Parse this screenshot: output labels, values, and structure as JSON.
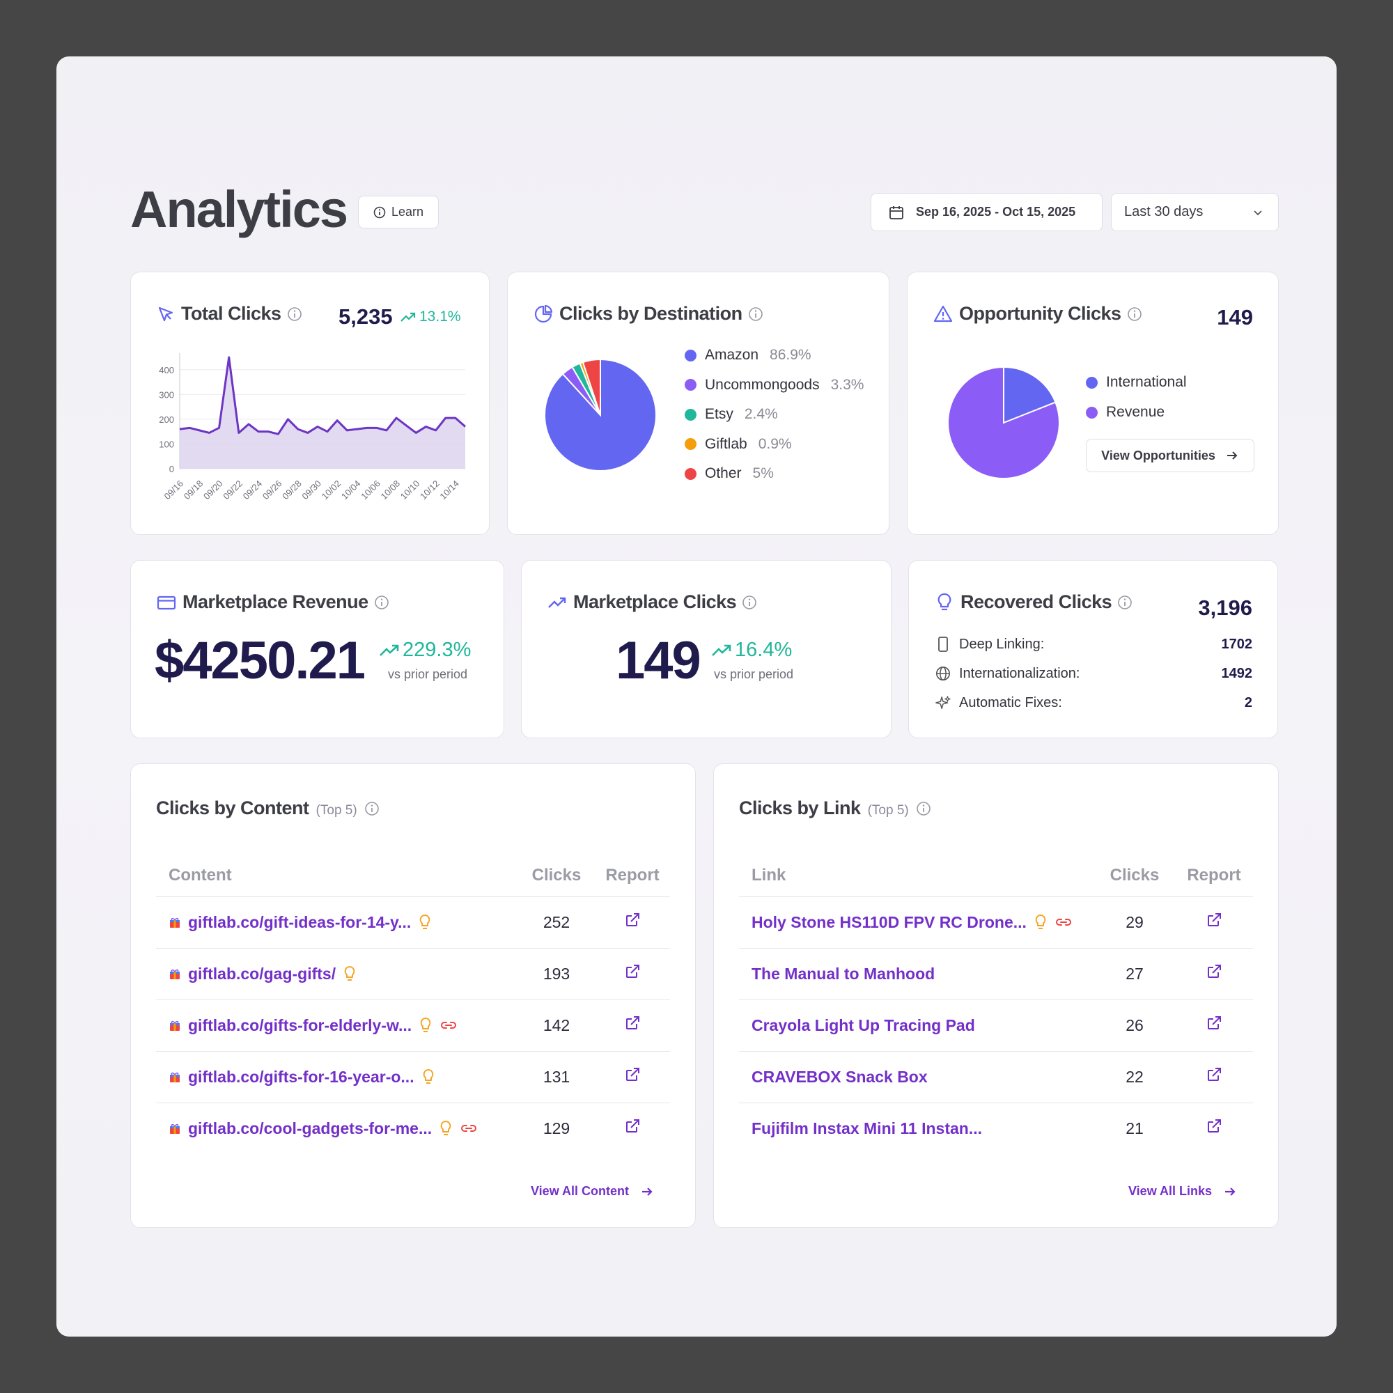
{
  "header": {
    "title": "Analytics",
    "learn_label": "Learn",
    "date_range": "Sep 16, 2025 - Oct 15, 2025",
    "range_select": "Last 30 days"
  },
  "total_clicks": {
    "title": "Total Clicks",
    "value": "5,235",
    "trend": "13.1%"
  },
  "clicks_by_destination": {
    "title": "Clicks by Destination",
    "legend": [
      {
        "label": "Amazon",
        "pct": "86.9%",
        "color": "#6366f1"
      },
      {
        "label": "Uncommongoods",
        "pct": "3.3%",
        "color": "#8b5cf6"
      },
      {
        "label": "Etsy",
        "pct": "2.4%",
        "color": "#20b79c"
      },
      {
        "label": "Giftlab",
        "pct": "0.9%",
        "color": "#f59e0b"
      },
      {
        "label": "Other",
        "pct": "5%",
        "color": "#ef4444"
      }
    ]
  },
  "opportunity_clicks": {
    "title": "Opportunity Clicks",
    "value": "149",
    "legend": [
      {
        "label": "International",
        "color": "#6366f1"
      },
      {
        "label": "Revenue",
        "color": "#8b5cf6"
      }
    ],
    "button": "View Opportunities"
  },
  "marketplace_revenue": {
    "title": "Marketplace Revenue",
    "value": "$4250.21",
    "trend": "229.3%",
    "sub": "vs prior period"
  },
  "marketplace_clicks": {
    "title": "Marketplace Clicks",
    "value": "149",
    "trend": "16.4%",
    "sub": "vs prior period"
  },
  "recovered_clicks": {
    "title": "Recovered Clicks",
    "value": "3,196",
    "rows": [
      {
        "label": "Deep Linking:",
        "value": "1702"
      },
      {
        "label": "Internationalization:",
        "value": "1492"
      },
      {
        "label": "Automatic Fixes:",
        "value": "2"
      }
    ]
  },
  "clicks_by_content": {
    "title": "Clicks by Content",
    "subtitle": "(Top 5)",
    "columns": [
      "Content",
      "Clicks",
      "Report"
    ],
    "rows": [
      {
        "text": "giftlab.co/gift-ideas-for-14-y...",
        "clicks": "252",
        "bulb": true,
        "link": false
      },
      {
        "text": "giftlab.co/gag-gifts/",
        "clicks": "193",
        "bulb": true,
        "link": false
      },
      {
        "text": "giftlab.co/gifts-for-elderly-w...",
        "clicks": "142",
        "bulb": true,
        "link": true
      },
      {
        "text": "giftlab.co/gifts-for-16-year-o...",
        "clicks": "131",
        "bulb": true,
        "link": false
      },
      {
        "text": "giftlab.co/cool-gadgets-for-me...",
        "clicks": "129",
        "bulb": true,
        "link": true
      }
    ],
    "view_all": "View All Content"
  },
  "clicks_by_link": {
    "title": "Clicks by Link",
    "subtitle": "(Top 5)",
    "columns": [
      "Link",
      "Clicks",
      "Report"
    ],
    "rows": [
      {
        "text": "Holy Stone HS110D FPV RC Drone...",
        "clicks": "29",
        "bulb": true,
        "link": true
      },
      {
        "text": "The Manual to Manhood",
        "clicks": "27",
        "bulb": false,
        "link": false
      },
      {
        "text": "Crayola Light Up Tracing Pad",
        "clicks": "26",
        "bulb": false,
        "link": false
      },
      {
        "text": "CRAVEBOX Snack Box",
        "clicks": "22",
        "bulb": false,
        "link": false
      },
      {
        "text": "Fujifilm Instax Mini 11 Instan...",
        "clicks": "21",
        "bulb": false,
        "link": false
      }
    ],
    "view_all": "View All Links"
  },
  "chart_data": [
    {
      "type": "area",
      "x": [
        "09/16",
        "09/17",
        "09/18",
        "09/19",
        "09/20",
        "09/21",
        "09/22",
        "09/23",
        "09/24",
        "09/25",
        "09/26",
        "09/27",
        "09/28",
        "09/29",
        "09/30",
        "10/01",
        "10/02",
        "10/03",
        "10/04",
        "10/05",
        "10/06",
        "10/07",
        "10/08",
        "10/09",
        "10/10",
        "10/11",
        "10/12",
        "10/13",
        "10/14",
        "10/15"
      ],
      "x_tick_labels": [
        "09/16",
        "09/18",
        "09/20",
        "09/22",
        "09/24",
        "09/26",
        "09/28",
        "09/30",
        "10/02",
        "10/04",
        "10/06",
        "10/08",
        "10/10",
        "10/12",
        "10/14"
      ],
      "values": [
        160,
        165,
        155,
        145,
        165,
        450,
        145,
        180,
        150,
        150,
        140,
        200,
        160,
        145,
        170,
        150,
        195,
        155,
        160,
        165,
        165,
        155,
        205,
        175,
        145,
        170,
        155,
        205,
        205,
        170
      ],
      "ylim": [
        0,
        450
      ],
      "yticks": [
        0,
        100,
        200,
        300,
        400
      ],
      "grid": true,
      "colors": {
        "line": "#6d35c3",
        "fill": "#ddd3ef"
      }
    },
    {
      "type": "pie",
      "labels": [
        "Amazon",
        "Uncommongoods",
        "Etsy",
        "Giftlab",
        "Other"
      ],
      "values": [
        86.9,
        3.3,
        2.4,
        0.9,
        5
      ],
      "colors": [
        "#6366f1",
        "#8b5cf6",
        "#20b79c",
        "#f59e0b",
        "#ef4444"
      ]
    },
    {
      "type": "pie",
      "labels": [
        "International",
        "Revenue"
      ],
      "values": [
        19,
        81
      ],
      "colors": [
        "#6366f1",
        "#8b5cf6"
      ]
    }
  ]
}
